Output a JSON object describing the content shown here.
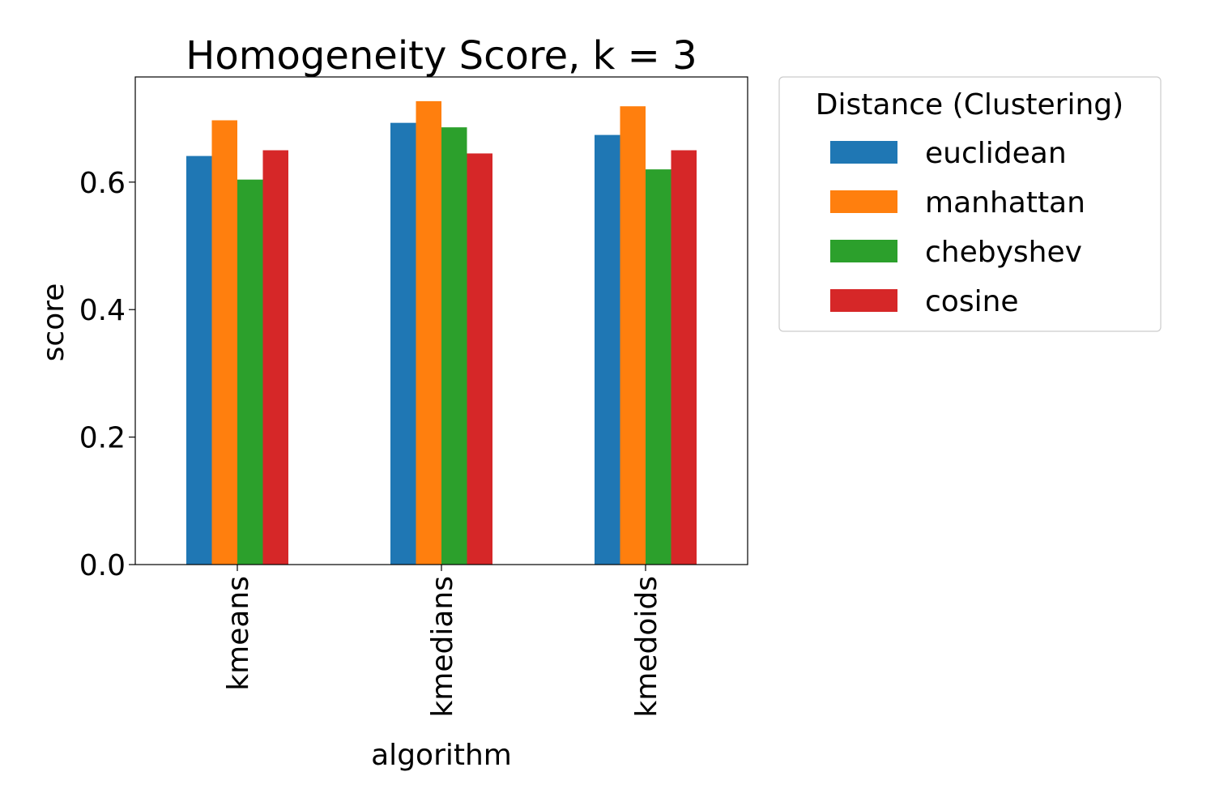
{
  "chart_data": {
    "type": "bar",
    "title": "Homogeneity Score, k = 3",
    "xlabel": "algorithm",
    "ylabel": "score",
    "categories": [
      "kmeans",
      "kmedians",
      "kmedoids"
    ],
    "ylim": [
      0,
      0.765
    ],
    "yticks": [
      {
        "value": 0.0,
        "label": "0.0"
      },
      {
        "value": 0.2,
        "label": "0.2"
      },
      {
        "value": 0.4,
        "label": "0.4"
      },
      {
        "value": 0.6,
        "label": "0.6"
      }
    ],
    "grid": false,
    "legend": {
      "title": "Distance (Clustering)",
      "placement": "outside-top-right"
    },
    "series": [
      {
        "name": "euclidean",
        "color": "#1f77b4",
        "values": [
          0.641,
          0.693,
          0.674
        ]
      },
      {
        "name": "manhattan",
        "color": "#ff7f0e",
        "values": [
          0.697,
          0.727,
          0.719
        ]
      },
      {
        "name": "chebyshev",
        "color": "#2ca02c",
        "values": [
          0.604,
          0.686,
          0.62
        ]
      },
      {
        "name": "cosine",
        "color": "#d62728",
        "values": [
          0.65,
          0.645,
          0.65
        ]
      }
    ]
  }
}
